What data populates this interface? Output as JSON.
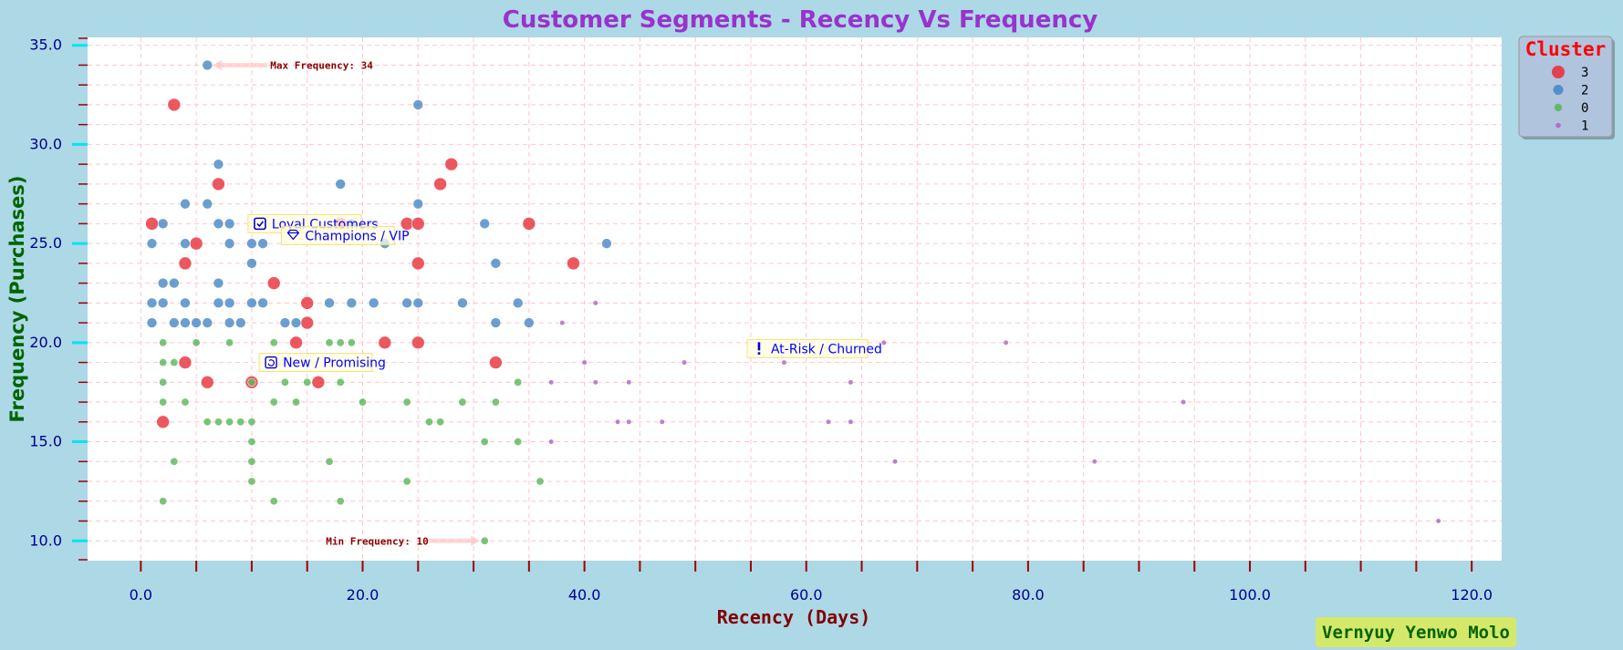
{
  "chart_data": {
    "type": "scatter",
    "title": "Customer Segments - Recency Vs Frequency",
    "xlabel": "Recency (Days)",
    "ylabel": "Frequency (Purchases)",
    "xlim": [
      -4.8,
      122.7
    ],
    "ylim": [
      9.0,
      35.4
    ],
    "x_ticks": [
      0,
      20,
      40,
      60,
      80,
      100,
      120
    ],
    "x_tick_labels": [
      "0.0",
      "20.0",
      "40.0",
      "60.0",
      "80.0",
      "100.0",
      "120.0"
    ],
    "y_ticks": [
      10,
      15,
      20,
      25,
      30,
      35
    ],
    "y_tick_labels": [
      "10.0",
      "15.0",
      "20.0",
      "25.0",
      "30.0",
      "35.0"
    ],
    "grid": true,
    "legend": {
      "title": "Cluster",
      "position": "top-right",
      "entries": [
        "3",
        "2",
        "0",
        "1"
      ]
    },
    "series": [
      {
        "name": "3",
        "color": "#e8333d",
        "points": [
          [
            1,
            26
          ],
          [
            3,
            32
          ],
          [
            4,
            24
          ],
          [
            4,
            19
          ],
          [
            5,
            25
          ],
          [
            6,
            18
          ],
          [
            2,
            16
          ],
          [
            7,
            28
          ],
          [
            10,
            18
          ],
          [
            12,
            23
          ],
          [
            14,
            20
          ],
          [
            15,
            22
          ],
          [
            15,
            21
          ],
          [
            16,
            18
          ],
          [
            18,
            26
          ],
          [
            22,
            20
          ],
          [
            24,
            26
          ],
          [
            25,
            26
          ],
          [
            25,
            24
          ],
          [
            25,
            20
          ],
          [
            27,
            28
          ],
          [
            28,
            29
          ],
          [
            32,
            19
          ],
          [
            35,
            26
          ],
          [
            39,
            24
          ]
        ]
      },
      {
        "name": "2",
        "color": "#4a8ac4",
        "points": [
          [
            6,
            34
          ],
          [
            25,
            32
          ],
          [
            7,
            29
          ],
          [
            18,
            28
          ],
          [
            4,
            27
          ],
          [
            6,
            27
          ],
          [
            25,
            27
          ],
          [
            2,
            26
          ],
          [
            7,
            26
          ],
          [
            8,
            26
          ],
          [
            19,
            26
          ],
          [
            31,
            26
          ],
          [
            1,
            25
          ],
          [
            4,
            25
          ],
          [
            8,
            25
          ],
          [
            10,
            25
          ],
          [
            11,
            25
          ],
          [
            22,
            25
          ],
          [
            42,
            25
          ],
          [
            10,
            24
          ],
          [
            32,
            24
          ],
          [
            2,
            23
          ],
          [
            3,
            23
          ],
          [
            7,
            23
          ],
          [
            1,
            22
          ],
          [
            2,
            22
          ],
          [
            4,
            22
          ],
          [
            7,
            22
          ],
          [
            8,
            22
          ],
          [
            10,
            22
          ],
          [
            11,
            22
          ],
          [
            17,
            22
          ],
          [
            19,
            22
          ],
          [
            21,
            22
          ],
          [
            24,
            22
          ],
          [
            25,
            22
          ],
          [
            29,
            22
          ],
          [
            34,
            22
          ],
          [
            1,
            21
          ],
          [
            3,
            21
          ],
          [
            4,
            21
          ],
          [
            5,
            21
          ],
          [
            6,
            21
          ],
          [
            8,
            21
          ],
          [
            9,
            21
          ],
          [
            13,
            21
          ],
          [
            14,
            21
          ],
          [
            32,
            21
          ],
          [
            35,
            21
          ]
        ]
      },
      {
        "name": "0",
        "color": "#5cb85c",
        "points": [
          [
            2,
            20
          ],
          [
            5,
            20
          ],
          [
            8,
            20
          ],
          [
            12,
            20
          ],
          [
            17,
            20
          ],
          [
            18,
            20
          ],
          [
            19,
            20
          ],
          [
            2,
            19
          ],
          [
            3,
            19
          ],
          [
            2,
            18
          ],
          [
            10,
            18
          ],
          [
            13,
            18
          ],
          [
            15,
            18
          ],
          [
            18,
            18
          ],
          [
            34,
            18
          ],
          [
            2,
            17
          ],
          [
            4,
            17
          ],
          [
            12,
            17
          ],
          [
            14,
            17
          ],
          [
            20,
            17
          ],
          [
            24,
            17
          ],
          [
            29,
            17
          ],
          [
            32,
            17
          ],
          [
            6,
            16
          ],
          [
            7,
            16
          ],
          [
            8,
            16
          ],
          [
            9,
            16
          ],
          [
            10,
            16
          ],
          [
            26,
            16
          ],
          [
            27,
            16
          ],
          [
            10,
            15
          ],
          [
            31,
            15
          ],
          [
            34,
            15
          ],
          [
            3,
            14
          ],
          [
            10,
            14
          ],
          [
            17,
            14
          ],
          [
            10,
            13
          ],
          [
            24,
            13
          ],
          [
            36,
            13
          ],
          [
            2,
            12
          ],
          [
            12,
            12
          ],
          [
            18,
            12
          ],
          [
            31,
            10
          ]
        ]
      },
      {
        "name": "1",
        "color": "#b065c2",
        "points": [
          [
            41,
            22
          ],
          [
            38,
            21
          ],
          [
            67,
            20
          ],
          [
            78,
            20
          ],
          [
            40,
            19
          ],
          [
            49,
            19
          ],
          [
            58,
            19
          ],
          [
            37,
            18
          ],
          [
            41,
            18
          ],
          [
            44,
            18
          ],
          [
            64,
            18
          ],
          [
            94,
            17
          ],
          [
            43,
            16
          ],
          [
            44,
            16
          ],
          [
            47,
            16
          ],
          [
            62,
            16
          ],
          [
            64,
            16
          ],
          [
            37,
            15
          ],
          [
            68,
            14
          ],
          [
            86,
            14
          ],
          [
            117,
            11
          ]
        ]
      }
    ],
    "annotations": [
      {
        "text": "Max Frequency: 34",
        "x": 6,
        "y": 34
      },
      {
        "text": "Min Frequency: 10",
        "x": 31,
        "y": 10
      }
    ],
    "segment_labels": [
      {
        "icon": "check-box-icon",
        "text": "Loyal Customers",
        "x": 10,
        "y": 26
      },
      {
        "icon": "diamond-icon",
        "text": "Champions / VIP",
        "x": 13,
        "y": 25.4
      },
      {
        "icon": "refresh-box-icon",
        "text": "New / Promising",
        "x": 11,
        "y": 19
      },
      {
        "icon": "exclamation-icon",
        "text": "At-Risk / Churned",
        "x": 55,
        "y": 19.7
      }
    ],
    "watermark": "Vernyuy Yenwo Molo"
  }
}
